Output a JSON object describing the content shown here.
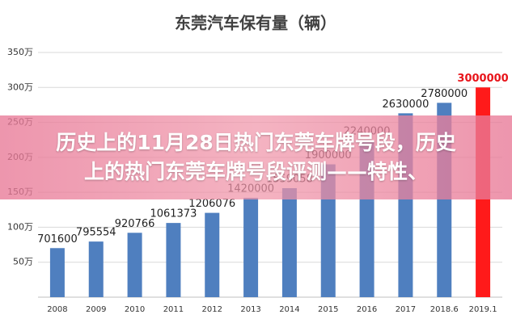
{
  "chart_data": {
    "type": "bar",
    "title": "东莞汽车保有量（辆）",
    "categories": [
      "2008",
      "2009",
      "2010",
      "2011",
      "2012",
      "2013",
      "2014",
      "2015",
      "2016",
      "2017",
      "2018.6",
      "2019.1"
    ],
    "values": [
      701600,
      795554,
      920766,
      1061373,
      1206076,
      1420000,
      1559058,
      1900000,
      2240000,
      2630000,
      2780000,
      3000000
    ],
    "colors": [
      "#4f7fbf",
      "#4f7fbf",
      "#4f7fbf",
      "#4f7fbf",
      "#4f7fbf",
      "#4f7fbf",
      "#4f7fbf",
      "#4f7fbf",
      "#4f7fbf",
      "#4f7fbf",
      "#4f7fbf",
      "#ff1a1a"
    ],
    "label_colors": [
      "#222",
      "#222",
      "#222",
      "#222",
      "#222",
      "#222",
      "#222",
      "#222",
      "#222",
      "#222",
      "#222",
      "#e8141a"
    ],
    "ylim": [
      0,
      3500000
    ],
    "yticks": [
      {
        "value": 500000,
        "label": "50万"
      },
      {
        "value": 1000000,
        "label": "100万"
      },
      {
        "value": 1500000,
        "label": "150万"
      },
      {
        "value": 2000000,
        "label": "200万"
      },
      {
        "value": 2500000,
        "label": "250万"
      },
      {
        "value": 3000000,
        "label": "300万"
      },
      {
        "value": 3500000,
        "label": "350万"
      }
    ],
    "grid": true
  },
  "banner": {
    "lines": [
      "历史上的11月28日热门东莞车牌号段，历史",
      "上的热门东莞车牌号段评测——特性、"
    ]
  }
}
